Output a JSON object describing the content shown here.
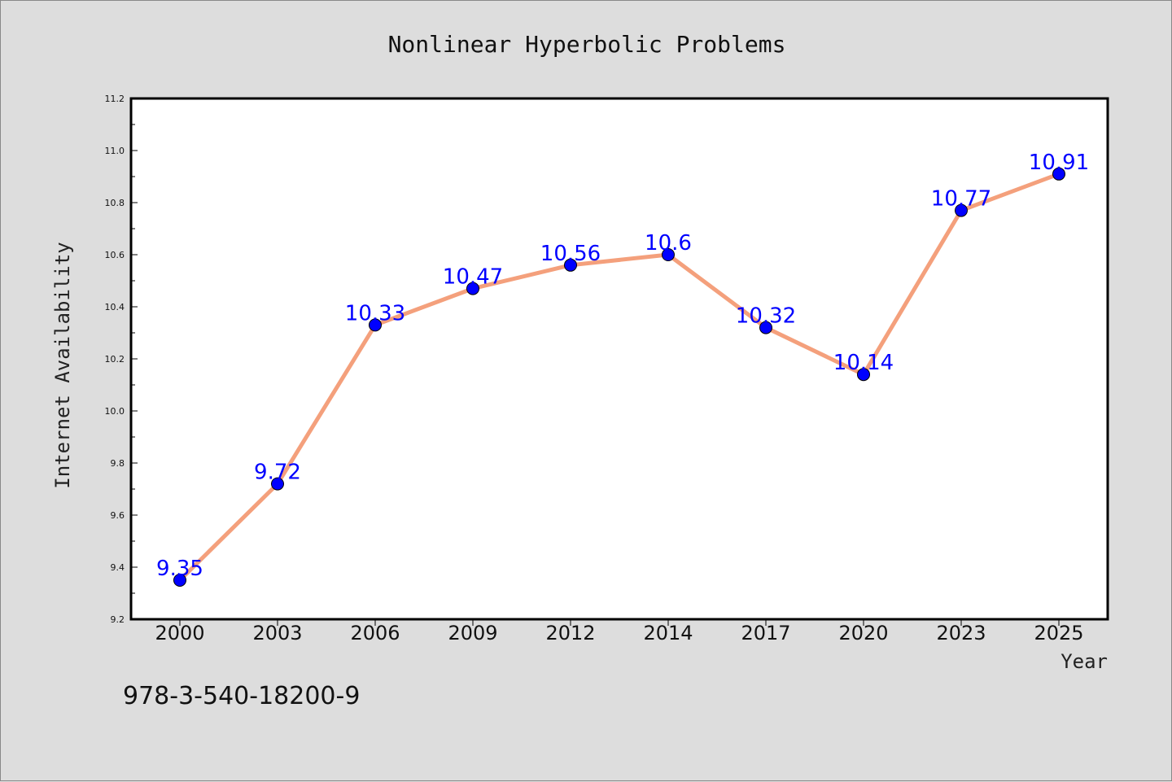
{
  "chart_data": {
    "type": "line",
    "title": "Nonlinear Hyperbolic Problems",
    "xlabel": "Year",
    "ylabel": "Internet Availability",
    "categories": [
      "2000",
      "2003",
      "2006",
      "2009",
      "2012",
      "2014",
      "2017",
      "2020",
      "2023",
      "2025"
    ],
    "series": [
      {
        "values": [
          9.35,
          9.72,
          10.33,
          10.47,
          10.56,
          10.6,
          10.32,
          10.14,
          10.77,
          10.91
        ],
        "labels": [
          "9.35",
          "9.72",
          "10.33",
          "10.47",
          "10.56",
          "10.6",
          "10.32",
          "10.14",
          "10.77",
          "10.91"
        ]
      }
    ],
    "ylim": [
      9.2,
      11.2
    ],
    "yticks": [
      "9.2",
      "9.4",
      "9.6",
      "9.8",
      "10.0",
      "10.2",
      "10.4",
      "10.6",
      "10.8",
      "11.0",
      "11.2"
    ],
    "line_color": "#f4a07c",
    "marker_color": "#0000ff",
    "label_color": "#0000ff",
    "grid": false,
    "legend": "none"
  },
  "footnote": "978-3-540-18200-9"
}
